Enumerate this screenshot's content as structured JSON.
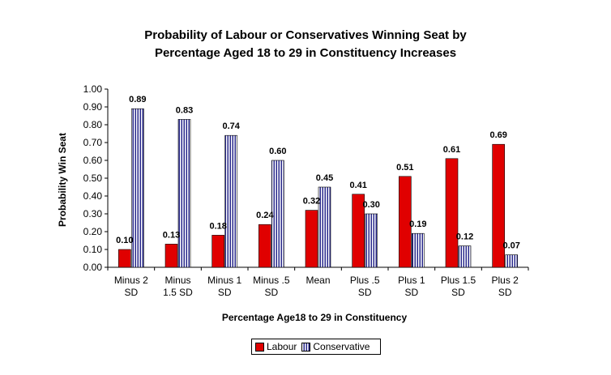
{
  "chart_data": {
    "type": "bar",
    "title_line1": "Probability of Labour or Conservatives Winning Seat by",
    "title_line2": "Percentage Aged 18 to 29  in Constituency Increases",
    "xlabel": "Percentage Age18 to 29 in Constituency",
    "ylabel": "Probability Win Seat",
    "ylim": [
      0,
      1.0
    ],
    "yticks": [
      "0.00",
      "0.10",
      "0.20",
      "0.30",
      "0.40",
      "0.50",
      "0.60",
      "0.70",
      "0.80",
      "0.90",
      "1.00"
    ],
    "categories": [
      [
        "Minus 2",
        "SD"
      ],
      [
        "Minus",
        "1.5 SD"
      ],
      [
        "Minus 1",
        "SD"
      ],
      [
        "Minus .5",
        "SD"
      ],
      [
        "Mean",
        ""
      ],
      [
        "Plus .5",
        "SD"
      ],
      [
        "Plus 1",
        "SD"
      ],
      [
        "Plus 1.5",
        "SD"
      ],
      [
        "Plus 2",
        "SD"
      ]
    ],
    "series": [
      {
        "name": "Labour",
        "values": [
          0.1,
          0.13,
          0.18,
          0.24,
          0.32,
          0.41,
          0.51,
          0.61,
          0.69
        ],
        "labels": [
          "0.10",
          "0.13",
          "0.18",
          "0.24",
          "0.32",
          "0.41",
          "0.51",
          "0.61",
          "0.69"
        ]
      },
      {
        "name": "Conservative",
        "values": [
          0.89,
          0.83,
          0.74,
          0.6,
          0.45,
          0.3,
          0.19,
          0.12,
          0.07
        ],
        "labels": [
          "0.89",
          "0.83",
          "0.74",
          "0.60",
          "0.45",
          "0.30",
          "0.19",
          "0.12",
          "0.07"
        ]
      }
    ],
    "legend_position": "bottom",
    "grid": false,
    "colors": {
      "labour": "#e00000",
      "conservative_stripe": "#2a2a8c"
    }
  }
}
